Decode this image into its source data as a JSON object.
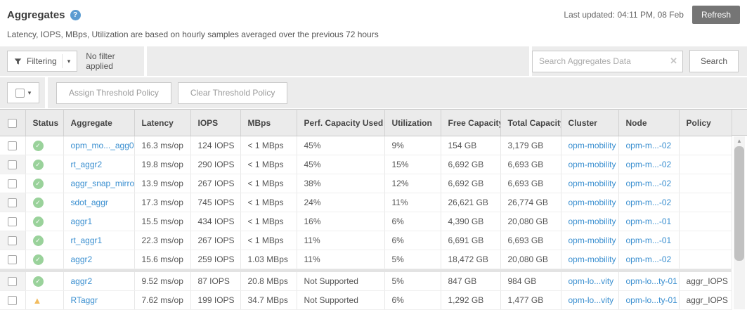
{
  "header": {
    "title": "Aggregates",
    "last_updated": "Last updated: 04:11 PM, 08 Feb",
    "refresh_label": "Refresh",
    "subtitle": "Latency, IOPS, MBps, Utilization are based on hourly samples averaged over the previous 72 hours"
  },
  "filter_bar": {
    "filtering_label": "Filtering",
    "status_text": "No filter applied",
    "search_placeholder": "Search Aggregates Data",
    "search_button_label": "Search"
  },
  "actions_bar": {
    "assign_label": "Assign Threshold Policy",
    "clear_label": "Clear Threshold Policy"
  },
  "icons": {
    "help": "?",
    "caret": "▾",
    "clear": "✕",
    "check": "✓",
    "warning": "▲",
    "scroll_up": "▲",
    "sort_arrow": "↓",
    "sort_letter": "F"
  },
  "colors": {
    "accent_link": "#3a8fd0",
    "status_ok": "#9ad29b",
    "status_warning": "#f2bc5f",
    "refresh_button_bg": "#757575",
    "toolbar_bg": "#ececec",
    "table_header_bg": "#ebebeb"
  },
  "table": {
    "sort_column": "Perf. Capacity Used",
    "columns": [
      "Status",
      "Aggregate",
      "Latency",
      "IOPS",
      "MBps",
      "Perf. Capacity Used",
      "Utilization",
      "Free Capacity",
      "Total Capacity",
      "Cluster",
      "Node",
      "Policy"
    ],
    "rows": [
      {
        "status": "ok",
        "aggregate": "opm_mo..._agg0",
        "latency": "16.3 ms/op",
        "iops": "124 IOPS",
        "mbps": "< 1 MBps",
        "perf_capacity_used": "45%",
        "utilization": "9%",
        "free_capacity": "154 GB",
        "total_capacity": "3,179 GB",
        "cluster": "opm-mobility",
        "node": "opm-m...-02",
        "policy": ""
      },
      {
        "status": "ok",
        "aggregate": "rt_aggr2",
        "latency": "19.8 ms/op",
        "iops": "290 IOPS",
        "mbps": "< 1 MBps",
        "perf_capacity_used": "45%",
        "utilization": "15%",
        "free_capacity": "6,692 GB",
        "total_capacity": "6,693 GB",
        "cluster": "opm-mobility",
        "node": "opm-m...-02",
        "policy": ""
      },
      {
        "status": "ok",
        "aggregate": "aggr_snap_mirror",
        "latency": "13.9 ms/op",
        "iops": "267 IOPS",
        "mbps": "< 1 MBps",
        "perf_capacity_used": "38%",
        "utilization": "12%",
        "free_capacity": "6,692 GB",
        "total_capacity": "6,693 GB",
        "cluster": "opm-mobility",
        "node": "opm-m...-02",
        "policy": ""
      },
      {
        "status": "ok",
        "aggregate": "sdot_aggr",
        "latency": "17.3 ms/op",
        "iops": "745 IOPS",
        "mbps": "< 1 MBps",
        "perf_capacity_used": "24%",
        "utilization": "11%",
        "free_capacity": "26,621 GB",
        "total_capacity": "26,774 GB",
        "cluster": "opm-mobility",
        "node": "opm-m...-02",
        "policy": ""
      },
      {
        "status": "ok",
        "aggregate": "aggr1",
        "latency": "15.5 ms/op",
        "iops": "434 IOPS",
        "mbps": "< 1 MBps",
        "perf_capacity_used": "16%",
        "utilization": "6%",
        "free_capacity": "4,390 GB",
        "total_capacity": "20,080 GB",
        "cluster": "opm-mobility",
        "node": "opm-m...-01",
        "policy": ""
      },
      {
        "status": "ok",
        "aggregate": "rt_aggr1",
        "latency": "22.3 ms/op",
        "iops": "267 IOPS",
        "mbps": "< 1 MBps",
        "perf_capacity_used": "11%",
        "utilization": "6%",
        "free_capacity": "6,691 GB",
        "total_capacity": "6,693 GB",
        "cluster": "opm-mobility",
        "node": "opm-m...-01",
        "policy": ""
      },
      {
        "status": "ok",
        "aggregate": "aggr2",
        "latency": "15.6 ms/op",
        "iops": "259 IOPS",
        "mbps": "1.03 MBps",
        "perf_capacity_used": "11%",
        "utilization": "5%",
        "free_capacity": "18,472 GB",
        "total_capacity": "20,080 GB",
        "cluster": "opm-mobility",
        "node": "opm-m...-02",
        "policy": ""
      },
      {
        "status": "ok",
        "group_start": true,
        "aggregate": "aggr2",
        "latency": "9.52 ms/op",
        "iops": "87 IOPS",
        "mbps": "20.8 MBps",
        "perf_capacity_used": "Not Supported",
        "utilization": "5%",
        "free_capacity": "847 GB",
        "total_capacity": "984 GB",
        "cluster": "opm-lo...vity",
        "node": "opm-lo...ty-01",
        "policy": "aggr_IOPS"
      },
      {
        "status": "warning",
        "aggregate": "RTaggr",
        "latency": "7.62 ms/op",
        "iops": "199 IOPS",
        "mbps": "34.7 MBps",
        "perf_capacity_used": "Not Supported",
        "utilization": "6%",
        "free_capacity": "1,292 GB",
        "total_capacity": "1,477 GB",
        "cluster": "opm-lo...vity",
        "node": "opm-lo...ty-01",
        "policy": "aggr_IOPS"
      }
    ]
  }
}
